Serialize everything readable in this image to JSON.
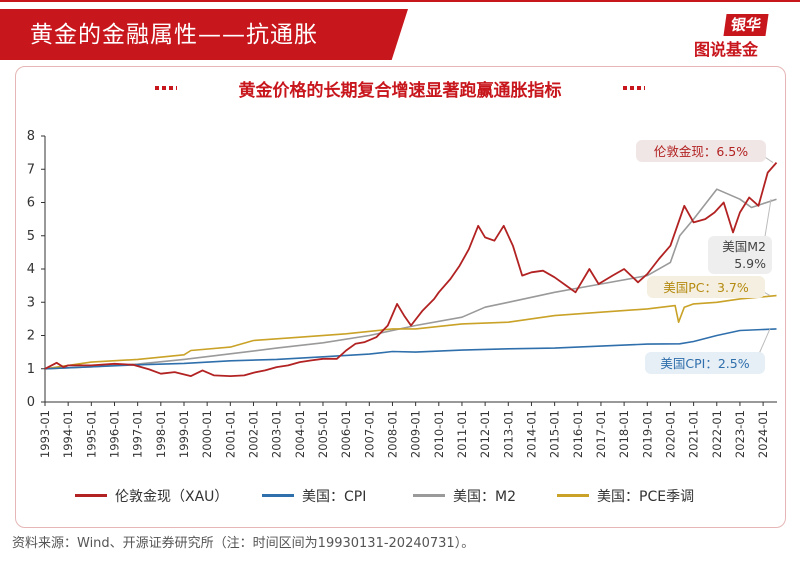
{
  "header": {
    "title": "黄金的金融属性——抗通胀"
  },
  "brand": {
    "line1": "银华",
    "line2": "图说基金"
  },
  "source_note": "资料来源：Wind、开源证券研究所（注：时间区间为19930131-20240731）。",
  "chart_data": {
    "type": "line",
    "title": "黄金价格的长期复合增速显著跑赢通胀指标",
    "x_ticks": [
      "1993-01",
      "1994-01",
      "1995-01",
      "1996-01",
      "1997-01",
      "1998-01",
      "1999-01",
      "2000-01",
      "2001-01",
      "2002-01",
      "2003-01",
      "2004-01",
      "2005-01",
      "2006-01",
      "2007-01",
      "2008-01",
      "2009-01",
      "2010-01",
      "2011-01",
      "2012-01",
      "2013-01",
      "2014-01",
      "2015-01",
      "2016-01",
      "2017-01",
      "2018-01",
      "2019-01",
      "2020-01",
      "2021-01",
      "2022-01",
      "2023-01",
      "2024-01"
    ],
    "ylim": [
      0,
      8
    ],
    "y_ticks": [
      "0",
      "1",
      "2",
      "3",
      "4",
      "5",
      "6",
      "7",
      "8"
    ],
    "grid": false,
    "legend_position": "bottom",
    "series": [
      {
        "name": "伦敦金现（XAU）",
        "color": "#b22222",
        "points": [
          [
            1993,
            1.0
          ],
          [
            1993.5,
            1.18
          ],
          [
            1993.8,
            1.05
          ],
          [
            1994,
            1.1
          ],
          [
            1995,
            1.1
          ],
          [
            1996,
            1.15
          ],
          [
            1996.8,
            1.12
          ],
          [
            1997.5,
            0.98
          ],
          [
            1998,
            0.85
          ],
          [
            1998.6,
            0.9
          ],
          [
            1999.3,
            0.78
          ],
          [
            1999.8,
            0.95
          ],
          [
            2000.3,
            0.8
          ],
          [
            2001,
            0.78
          ],
          [
            2001.6,
            0.8
          ],
          [
            2002,
            0.88
          ],
          [
            2002.5,
            0.95
          ],
          [
            2003,
            1.05
          ],
          [
            2003.5,
            1.1
          ],
          [
            2004,
            1.2
          ],
          [
            2004.5,
            1.25
          ],
          [
            2005,
            1.3
          ],
          [
            2005.6,
            1.3
          ],
          [
            2006,
            1.55
          ],
          [
            2006.4,
            1.75
          ],
          [
            2006.8,
            1.8
          ],
          [
            2007.3,
            1.95
          ],
          [
            2007.8,
            2.3
          ],
          [
            2008.2,
            2.95
          ],
          [
            2008.5,
            2.6
          ],
          [
            2008.8,
            2.3
          ],
          [
            2009.3,
            2.75
          ],
          [
            2009.8,
            3.1
          ],
          [
            2010,
            3.3
          ],
          [
            2010.5,
            3.7
          ],
          [
            2010.9,
            4.1
          ],
          [
            2011.3,
            4.6
          ],
          [
            2011.7,
            5.3
          ],
          [
            2012,
            4.95
          ],
          [
            2012.4,
            4.85
          ],
          [
            2012.8,
            5.3
          ],
          [
            2013.2,
            4.7
          ],
          [
            2013.6,
            3.8
          ],
          [
            2014,
            3.9
          ],
          [
            2014.5,
            3.95
          ],
          [
            2015,
            3.75
          ],
          [
            2015.5,
            3.5
          ],
          [
            2015.9,
            3.3
          ],
          [
            2016.5,
            4.0
          ],
          [
            2016.9,
            3.55
          ],
          [
            2017.5,
            3.8
          ],
          [
            2018,
            4.0
          ],
          [
            2018.6,
            3.6
          ],
          [
            2019,
            3.85
          ],
          [
            2019.5,
            4.3
          ],
          [
            2020,
            4.7
          ],
          [
            2020.6,
            5.9
          ],
          [
            2021,
            5.4
          ],
          [
            2021.5,
            5.5
          ],
          [
            2021.9,
            5.7
          ],
          [
            2022.3,
            6.0
          ],
          [
            2022.7,
            5.1
          ],
          [
            2023,
            5.7
          ],
          [
            2023.4,
            6.15
          ],
          [
            2023.8,
            5.9
          ],
          [
            2024.2,
            6.9
          ],
          [
            2024.58,
            7.2
          ]
        ]
      },
      {
        "name": "美国：CPI",
        "color": "#2f6fab",
        "points": [
          [
            1993,
            1.0
          ],
          [
            1995,
            1.06
          ],
          [
            1997,
            1.12
          ],
          [
            1999,
            1.16
          ],
          [
            2001,
            1.24
          ],
          [
            2003,
            1.28
          ],
          [
            2005,
            1.36
          ],
          [
            2007,
            1.44
          ],
          [
            2008,
            1.52
          ],
          [
            2009,
            1.5
          ],
          [
            2011,
            1.56
          ],
          [
            2013,
            1.6
          ],
          [
            2015,
            1.62
          ],
          [
            2017,
            1.68
          ],
          [
            2019,
            1.74
          ],
          [
            2020.4,
            1.75
          ],
          [
            2021,
            1.82
          ],
          [
            2022,
            2.0
          ],
          [
            2023,
            2.15
          ],
          [
            2024.58,
            2.2
          ]
        ]
      },
      {
        "name": "美国：M2",
        "color": "#9a9a9a",
        "points": [
          [
            1993,
            1.0
          ],
          [
            1995,
            1.06
          ],
          [
            1997,
            1.14
          ],
          [
            1999,
            1.28
          ],
          [
            2001,
            1.45
          ],
          [
            2003,
            1.62
          ],
          [
            2005,
            1.78
          ],
          [
            2007,
            2.0
          ],
          [
            2009,
            2.3
          ],
          [
            2011,
            2.55
          ],
          [
            2012,
            2.85
          ],
          [
            2013,
            3.0
          ],
          [
            2015,
            3.3
          ],
          [
            2017,
            3.55
          ],
          [
            2019,
            3.8
          ],
          [
            2020,
            4.2
          ],
          [
            2020.4,
            5.0
          ],
          [
            2021,
            5.5
          ],
          [
            2022,
            6.4
          ],
          [
            2023,
            6.1
          ],
          [
            2023.5,
            5.85
          ],
          [
            2024.58,
            6.1
          ]
        ]
      },
      {
        "name": "美国：PCE季调",
        "color": "#c9a227",
        "points": [
          [
            1993,
            1.0
          ],
          [
            1995,
            1.2
          ],
          [
            1997,
            1.28
          ],
          [
            1999,
            1.42
          ],
          [
            1999.3,
            1.55
          ],
          [
            2001,
            1.65
          ],
          [
            2002,
            1.85
          ],
          [
            2004,
            1.95
          ],
          [
            2006,
            2.05
          ],
          [
            2008,
            2.2
          ],
          [
            2009,
            2.2
          ],
          [
            2011,
            2.35
          ],
          [
            2013,
            2.4
          ],
          [
            2015,
            2.6
          ],
          [
            2017,
            2.7
          ],
          [
            2019,
            2.8
          ],
          [
            2020.2,
            2.9
          ],
          [
            2020.35,
            2.4
          ],
          [
            2020.6,
            2.85
          ],
          [
            2021,
            2.95
          ],
          [
            2022,
            3.0
          ],
          [
            2023,
            3.1
          ],
          [
            2024.58,
            3.2
          ]
        ]
      }
    ],
    "callouts": [
      {
        "text": "伦敦金现：6.5%",
        "series": 0,
        "style": "red"
      },
      {
        "text": "美国M2",
        "text2": "5.9%",
        "series": 2,
        "style": "gray"
      },
      {
        "text": "美国PC：3.7%",
        "series": 3,
        "style": "gold"
      },
      {
        "text": "美国CPI：2.5%",
        "series": 1,
        "style": "blue"
      }
    ]
  },
  "legend": [
    {
      "label": "伦敦金现（XAU）",
      "color": "#b22222"
    },
    {
      "label": "美国：CPI",
      "color": "#2f6fab"
    },
    {
      "label": "美国：M2",
      "color": "#9a9a9a"
    },
    {
      "label": "美国：PCE季调",
      "color": "#c9a227"
    }
  ]
}
